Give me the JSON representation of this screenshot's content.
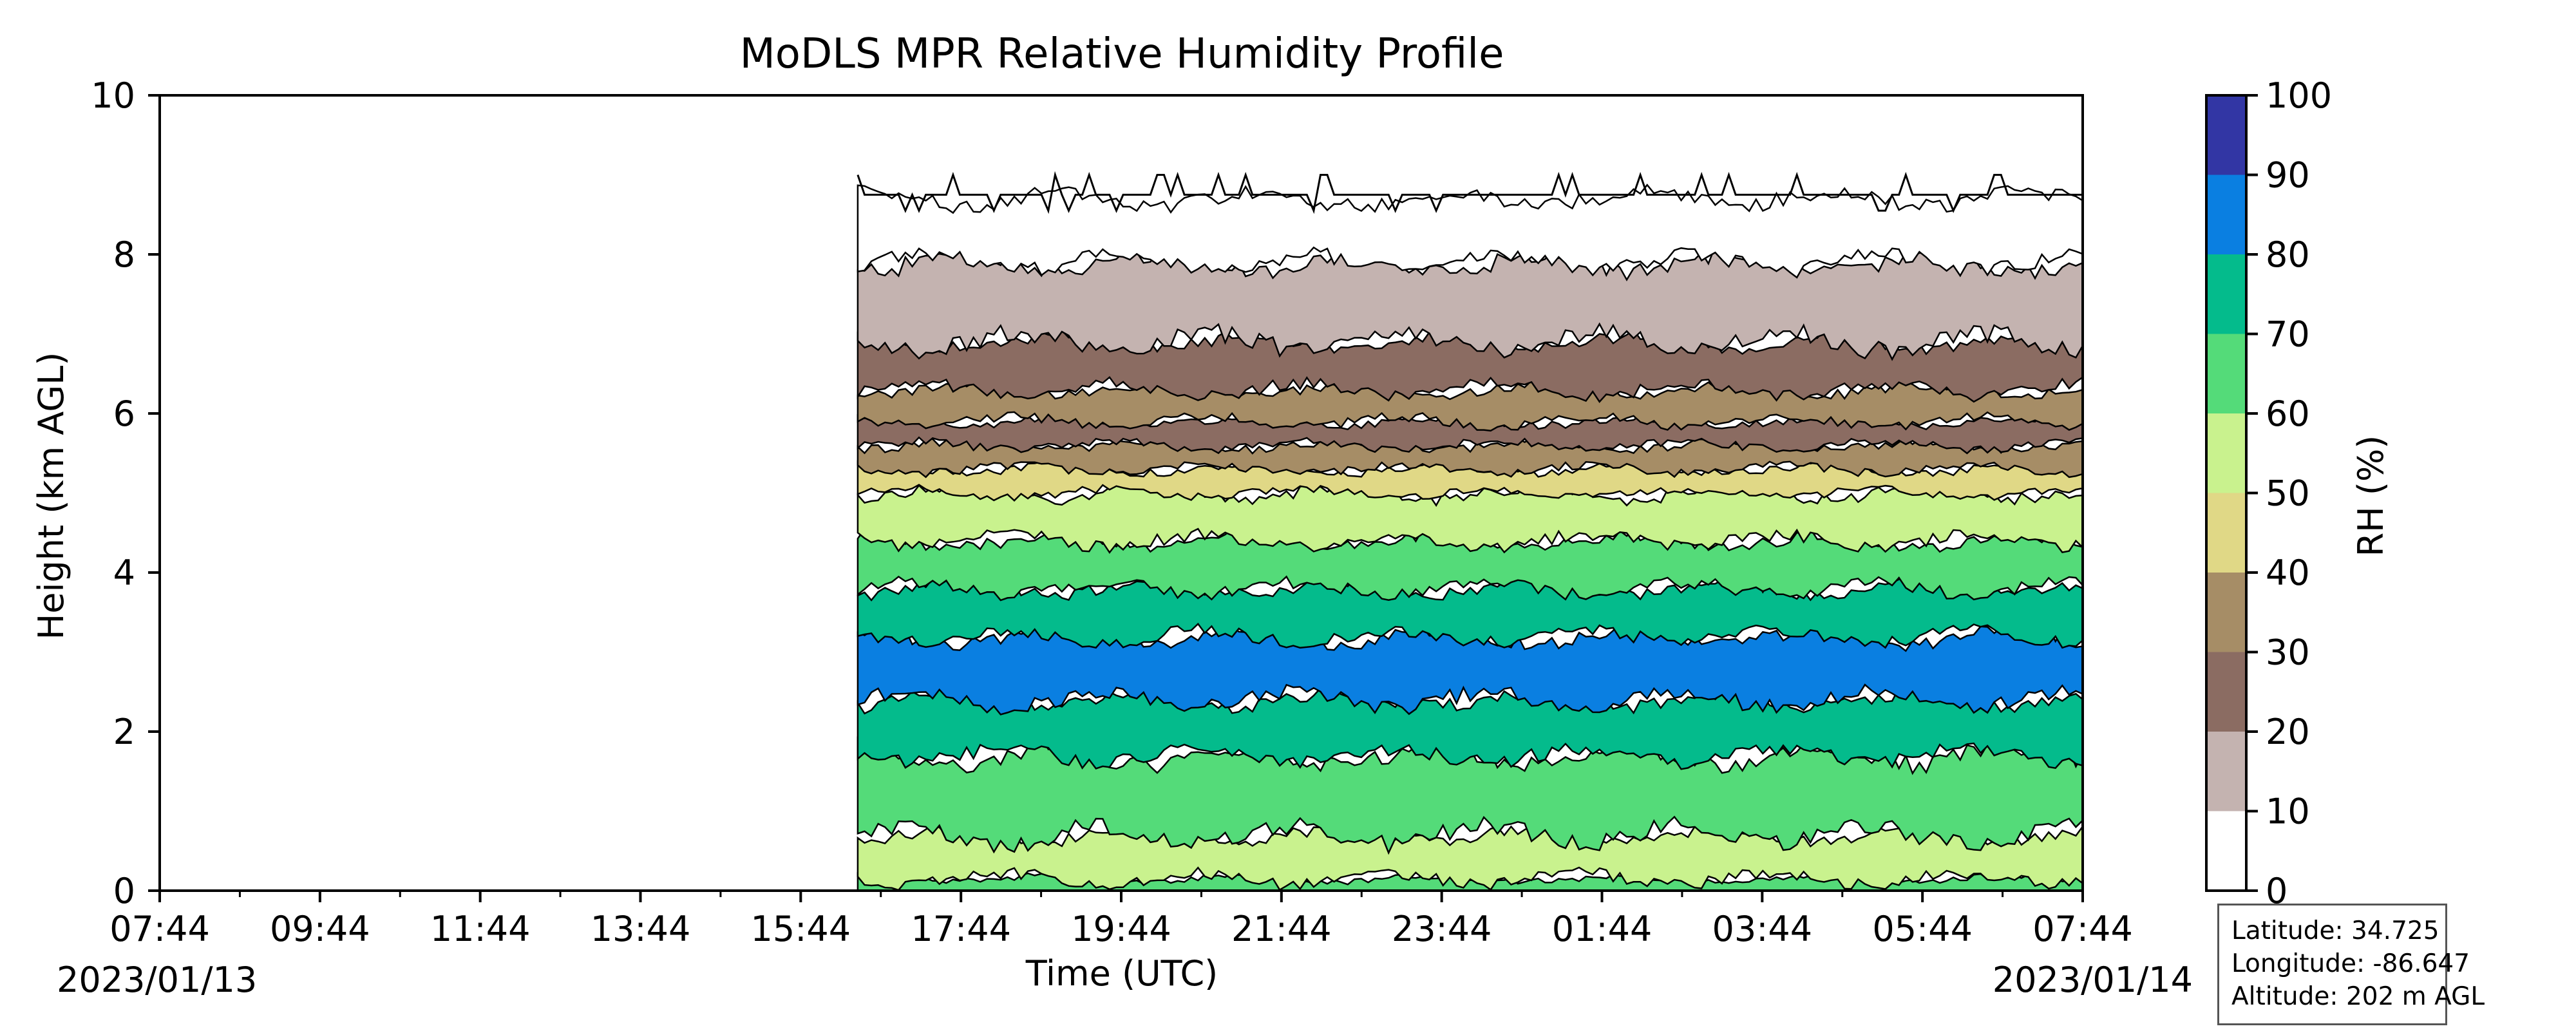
{
  "chart_data": {
    "type": "heatmap",
    "title": "MoDLS MPR Relative Humidity Profile",
    "xlabel": "Time (UTC)",
    "ylabel": "Height (km AGL)",
    "x_tick_labels": [
      "07:44",
      "09:44",
      "11:44",
      "13:44",
      "15:44",
      "17:44",
      "19:44",
      "21:44",
      "23:44",
      "01:44",
      "03:44",
      "05:44",
      "07:44"
    ],
    "x_date_labels": {
      "start": "2023/01/13",
      "end": "2023/01/14"
    },
    "x_range": [
      "2023/01/13 07:44",
      "2023/01/14 07:44"
    ],
    "data_start": "2023/01/13 16:32",
    "ylim": [
      0,
      10
    ],
    "y_ticks": [
      0,
      2,
      4,
      6,
      8,
      10
    ],
    "colorbar": {
      "label": "RH (%)",
      "ticks": [
        0,
        10,
        20,
        30,
        40,
        50,
        60,
        70,
        80,
        90,
        100
      ],
      "colors": [
        "#ffffff",
        "#c4b3b0",
        "#8b6c62",
        "#a68d66",
        "#e0d886",
        "#c9f28e",
        "#54db79",
        "#04bb8c",
        "#0a7fe1",
        "#3236a4"
      ]
    },
    "layers": [
      {
        "rh_range": [
          60,
          70
        ],
        "height_km": [
          0.0,
          0.15
        ]
      },
      {
        "rh_range": [
          50,
          60
        ],
        "height_km": [
          0.15,
          0.7
        ]
      },
      {
        "rh_range": [
          60,
          70
        ],
        "height_km": [
          0.7,
          1.7
        ]
      },
      {
        "rh_range": [
          70,
          80
        ],
        "height_km": [
          1.7,
          2.4
        ]
      },
      {
        "rh_range": [
          80,
          90
        ],
        "height_km": [
          2.4,
          3.2
        ]
      },
      {
        "rh_range": [
          70,
          80
        ],
        "height_km": [
          3.2,
          3.8
        ]
      },
      {
        "rh_range": [
          60,
          70
        ],
        "height_km": [
          3.8,
          4.4
        ]
      },
      {
        "rh_range": [
          50,
          60
        ],
        "height_km": [
          4.4,
          5.0
        ]
      },
      {
        "rh_range": [
          40,
          50
        ],
        "height_km": [
          5.0,
          5.3
        ]
      },
      {
        "rh_range": [
          30,
          40
        ],
        "height_km": [
          5.3,
          5.6
        ]
      },
      {
        "rh_range": [
          20,
          30
        ],
        "height_km": [
          5.6,
          5.9
        ]
      },
      {
        "rh_range": [
          30,
          40
        ],
        "height_km": [
          5.9,
          6.3
        ]
      },
      {
        "rh_range": [
          20,
          30
        ],
        "height_km": [
          6.3,
          6.9
        ]
      },
      {
        "rh_range": [
          10,
          20
        ],
        "height_km": [
          6.9,
          7.9
        ]
      },
      {
        "rh_range": [
          0,
          10
        ],
        "height_km": [
          7.9,
          8.7
        ]
      }
    ],
    "top_contour_km": 8.75
  },
  "info_box": {
    "latitude": "Latitude: 34.725",
    "longitude": "Longitude: -86.647",
    "altitude": "Altitude: 202 m AGL"
  }
}
